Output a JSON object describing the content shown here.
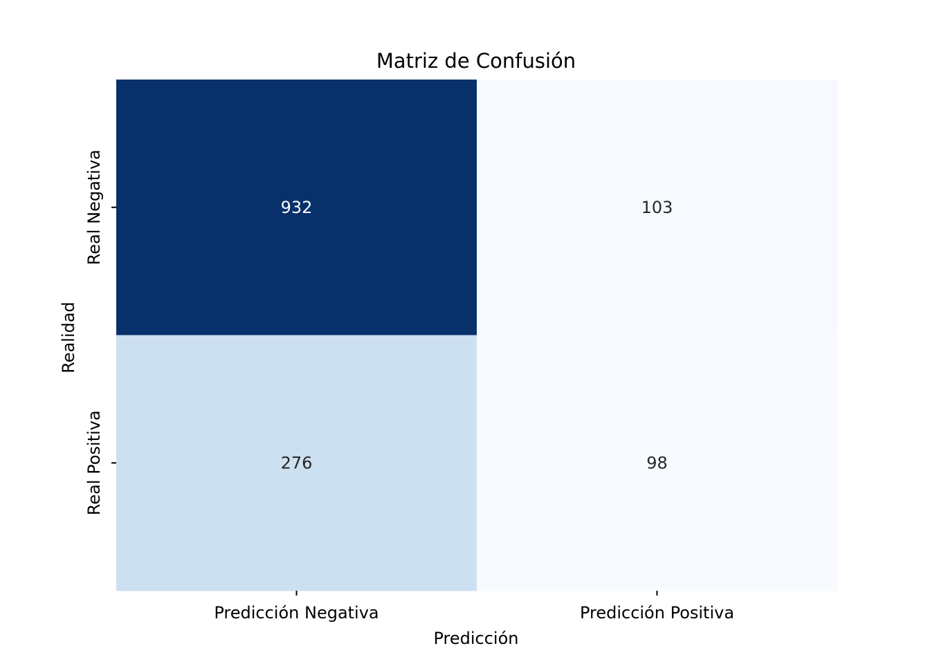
{
  "chart_data": {
    "type": "heatmap",
    "title": "Matriz de Confusión",
    "xlabel": "Predicción",
    "ylabel": "Realidad",
    "x_categories": [
      "Predicción Negativa",
      "Predicción Positiva"
    ],
    "y_categories": [
      "Real Negativa",
      "Real Positiva"
    ],
    "values": [
      [
        932,
        103
      ],
      [
        276,
        98
      ]
    ],
    "colormap": "Blues",
    "colorbar": false,
    "grid": false,
    "colors": {
      "low": "#f7fbff",
      "mid": "#cfe1f2",
      "high": "#08306b",
      "text_dark": "#262626",
      "text_light": "#ffffff"
    }
  }
}
